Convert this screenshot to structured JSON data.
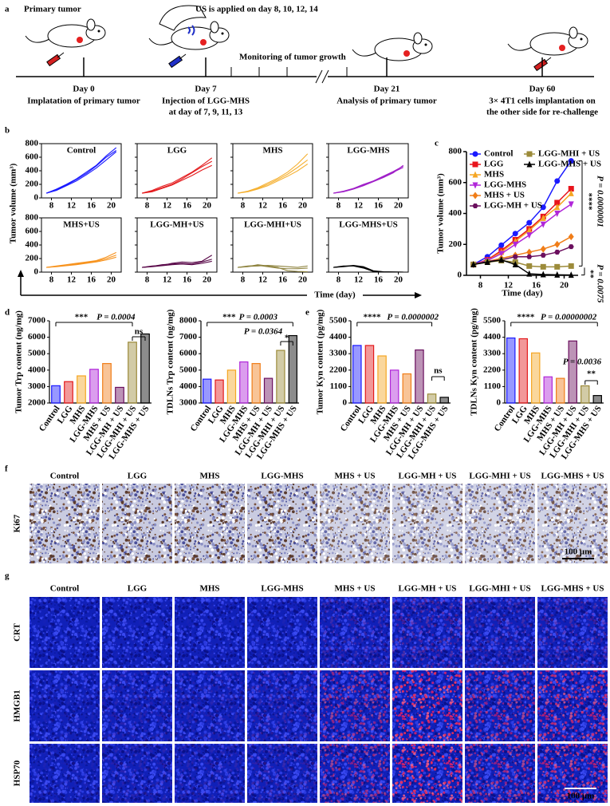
{
  "panel_labels": [
    "a",
    "b",
    "c",
    "d",
    "e",
    "f",
    "g"
  ],
  "timeline": {
    "top_labels": [
      "Primary tumor",
      "US is applied on day 8, 10, 12, 14",
      "Monitoring of tumor growth"
    ],
    "events": [
      {
        "day": "Day 0",
        "desc": [
          "Implatation of primary tumor"
        ]
      },
      {
        "day": "Day 7",
        "desc": [
          "Injection of LGG-MHS",
          "at day of 7, 9, 11, 13"
        ]
      },
      {
        "day": "Day 21",
        "desc": [
          "Analysis of primary tumor"
        ]
      },
      {
        "day": "Day 60",
        "desc": [
          "3× 4T1 cells implantation on",
          "the other side for re-challenge"
        ]
      }
    ]
  },
  "chart_data": [
    {
      "type": "small-multiples",
      "ylabel": "Tumor volume (mm³)",
      "xlabel": "Time (day)",
      "x": [
        7,
        9,
        11,
        13,
        15,
        17,
        19,
        21
      ],
      "xlim": [
        6,
        22
      ],
      "xticks": [
        8,
        12,
        16,
        20
      ],
      "ylim": [
        0,
        800
      ],
      "yticks": [
        0,
        200,
        400,
        600,
        800
      ],
      "panels": [
        {
          "title": "Control",
          "color": "#1a1aff",
          "series": [
            {
              "values": [
                70,
                130,
                200,
                280,
                380,
                480,
                620,
                740
              ]
            },
            {
              "values": [
                70,
                120,
                190,
                270,
                360,
                470,
                600,
                700
              ]
            },
            {
              "values": [
                70,
                110,
                180,
                250,
                340,
                440,
                560,
                680
              ]
            }
          ]
        },
        {
          "title": "LGG",
          "color": "#e31a1c",
          "series": [
            {
              "values": [
                70,
                110,
                170,
                220,
                300,
                380,
                480,
                590
              ]
            },
            {
              "values": [
                70,
                100,
                150,
                200,
                280,
                370,
                460,
                540
              ]
            },
            {
              "values": [
                70,
                90,
                140,
                190,
                260,
                330,
                410,
                480
              ]
            }
          ]
        },
        {
          "title": "MHS",
          "color": "#f5b133",
          "series": [
            {
              "values": [
                70,
                100,
                150,
                220,
                290,
                380,
                500,
                650
              ]
            },
            {
              "values": [
                70,
                95,
                140,
                200,
                270,
                350,
                450,
                560
              ]
            },
            {
              "values": [
                70,
                90,
                130,
                180,
                250,
                320,
                400,
                500
              ]
            }
          ]
        },
        {
          "title": "LGG-MHS",
          "color": "#a020c8",
          "series": [
            {
              "values": [
                70,
                100,
                140,
                190,
                250,
                320,
                390,
                470
              ]
            },
            {
              "values": [
                70,
                95,
                140,
                200,
                250,
                310,
                380,
                450
              ]
            },
            {
              "values": [
                70,
                90,
                130,
                180,
                240,
                300,
                370,
                480
              ]
            }
          ]
        },
        {
          "title": "MHS+US",
          "color": "#f7931e",
          "series": [
            {
              "values": [
                70,
                90,
                110,
                130,
                150,
                170,
                220,
                290
              ]
            },
            {
              "values": [
                70,
                85,
                100,
                120,
                140,
                160,
                200,
                250
              ]
            },
            {
              "values": [
                70,
                80,
                95,
                110,
                130,
                150,
                180,
                220
              ]
            }
          ]
        },
        {
          "title": "LGG-MH+US",
          "color": "#5a0a4a",
          "series": [
            {
              "values": [
                70,
                90,
                100,
                130,
                150,
                140,
                160,
                250
              ]
            },
            {
              "values": [
                70,
                85,
                110,
                120,
                130,
                120,
                150,
                190
              ]
            },
            {
              "values": [
                70,
                80,
                95,
                110,
                120,
                110,
                130,
                160
              ]
            }
          ]
        },
        {
          "title": "LGG-MHI+US",
          "color": "#8f8440",
          "series": [
            {
              "values": [
                70,
                90,
                100,
                80,
                60,
                50,
                50,
                60
              ]
            },
            {
              "values": [
                70,
                85,
                90,
                100,
                90,
                80,
                70,
                90
              ]
            },
            {
              "values": [
                70,
                80,
                110,
                90,
                70,
                20,
                10,
                5
              ]
            }
          ]
        },
        {
          "title": "LGG-MHS+US",
          "color": "#000000",
          "series": [
            {
              "values": [
                70,
                85,
                100,
                80,
                20,
                5,
                2,
                1
              ]
            },
            {
              "values": [
                70,
                90,
                90,
                60,
                10,
                3,
                1,
                0
              ]
            },
            {
              "values": [
                70,
                80,
                95,
                70,
                15,
                4,
                1,
                0
              ]
            }
          ]
        }
      ]
    },
    {
      "type": "line",
      "ylabel": "Tumor volume (mm³)",
      "xlabel": "Time (day)",
      "legend": "upper left",
      "x": [
        7,
        9,
        11,
        13,
        15,
        17,
        19,
        21
      ],
      "xlim": [
        6,
        22
      ],
      "xticks": [
        8,
        12,
        16,
        20
      ],
      "ylim": [
        0,
        800
      ],
      "yticks": [
        0,
        200,
        400,
        600,
        800
      ],
      "annotations": [
        "****",
        "P = 0.0000001",
        "**",
        "P = 0.0075"
      ],
      "series": [
        {
          "name": "Control",
          "color": "#1a1aff",
          "marker": "circle",
          "values": [
            70,
            120,
            195,
            270,
            340,
            440,
            610,
            740
          ]
        },
        {
          "name": "LGG",
          "color": "#e8141c",
          "marker": "square",
          "values": [
            70,
            100,
            160,
            230,
            300,
            380,
            470,
            560
          ]
        },
        {
          "name": "MHS",
          "color": "#f5a623",
          "marker": "triangle",
          "values": [
            70,
            95,
            150,
            220,
            290,
            370,
            440,
            530
          ]
        },
        {
          "name": "LGG-MHS",
          "color": "#b026d9",
          "marker": "triangle-down",
          "values": [
            70,
            95,
            140,
            200,
            260,
            330,
            400,
            460
          ]
        },
        {
          "name": "MHS + US",
          "color": "#f07d18",
          "marker": "diamond",
          "values": [
            70,
            90,
            110,
            130,
            150,
            170,
            200,
            250
          ]
        },
        {
          "name": "LGG-MH + US",
          "color": "#6b0f5e",
          "marker": "hexagon",
          "values": [
            70,
            90,
            100,
            120,
            120,
            130,
            150,
            185
          ]
        },
        {
          "name": "LGG-MHI + US",
          "color": "#9c8b3a",
          "marker": "square",
          "values": [
            70,
            85,
            95,
            85,
            60,
            55,
            55,
            60
          ]
        },
        {
          "name": "LGG-MHS + US",
          "color": "#000000",
          "marker": "triangle",
          "values": [
            70,
            85,
            100,
            70,
            10,
            5,
            3,
            2
          ]
        }
      ]
    },
    {
      "type": "bar",
      "ylabel": "Tumor Trp content (ng/mg)",
      "categories": [
        "Control",
        "LGG",
        "MHS",
        "LGG-MHS",
        "MHS + US",
        "LGG-MH + US",
        "LGG-MHI + US",
        "LGG-MHS + US"
      ],
      "colors": [
        "#1a1aff",
        "#e31a1c",
        "#f5a623",
        "#b026d9",
        "#f07d18",
        "#6b0f5e",
        "#9c8b3a",
        "#000000"
      ],
      "values": [
        3050,
        3300,
        3650,
        4050,
        4400,
        2950,
        5700,
        6200
      ],
      "ylim": [
        2000,
        7000
      ],
      "yticks": [
        2000,
        3000,
        4000,
        5000,
        6000,
        7000
      ],
      "annotations": [
        "***",
        "P = 0.0004",
        "ns"
      ]
    },
    {
      "type": "bar",
      "ylabel": "TDLNs Trp content (ng/mg)",
      "categories": [
        "Control",
        "LGG",
        "MHS",
        "LGG-MHS",
        "MHS + US",
        "LGG-MH + US",
        "LGG-MHI + US",
        "LGG-MHS + US"
      ],
      "colors": [
        "#1a1aff",
        "#e31a1c",
        "#f5a623",
        "#b026d9",
        "#f07d18",
        "#6b0f5e",
        "#9c8b3a",
        "#000000"
      ],
      "values": [
        4450,
        4400,
        5000,
        5500,
        5400,
        4500,
        6200,
        7100
      ],
      "ylim": [
        3000,
        8000
      ],
      "yticks": [
        3000,
        4000,
        5000,
        6000,
        7000,
        8000
      ],
      "annotations": [
        "***",
        "P = 0.0003",
        "P = 0.0364",
        "*"
      ]
    },
    {
      "type": "bar",
      "ylabel": "Tumor Kyn content (pg/mg)",
      "categories": [
        "Control",
        "LGG",
        "MHS",
        "LGG-MHS",
        "MHS + US",
        "LGG-MH + US",
        "LGG-MHI + US",
        "LGG-MHS + US"
      ],
      "colors": [
        "#1a1aff",
        "#e31a1c",
        "#f5a623",
        "#b026d9",
        "#f07d18",
        "#6b0f5e",
        "#9c8b3a",
        "#000000"
      ],
      "values": [
        3850,
        3850,
        3150,
        2200,
        1950,
        3550,
        600,
        380
      ],
      "ylim": [
        0,
        5500
      ],
      "yticks": [
        0,
        1100,
        2200,
        3300,
        4400,
        5500
      ],
      "annotations": [
        "****",
        "P = 0.0000002",
        "ns"
      ]
    },
    {
      "type": "bar",
      "ylabel": "TDLNs Kyn content (pg/mg)",
      "categories": [
        "Control",
        "LGG",
        "MHS",
        "LGG-MHS",
        "MHS + US",
        "LGG-MH + US",
        "LGG-MHI + US",
        "LGG-MHS + US"
      ],
      "colors": [
        "#1a1aff",
        "#e31a1c",
        "#f5a623",
        "#b026d9",
        "#f07d18",
        "#6b0f5e",
        "#9c8b3a",
        "#000000"
      ],
      "values": [
        4350,
        4300,
        3350,
        1750,
        1650,
        4150,
        1150,
        500
      ],
      "ylim": [
        0,
        5500
      ],
      "yticks": [
        0,
        1100,
        2200,
        3300,
        4400,
        5500
      ],
      "annotations": [
        "****",
        "P = 0.00000002",
        "P = 0.0036",
        "**"
      ]
    }
  ],
  "histology": {
    "columns": [
      "Control",
      "LGG",
      "MHS",
      "LGG-MHS",
      "MHS + US",
      "LGG-MH + US",
      "LGG-MHI + US",
      "LGG-MHS + US"
    ],
    "ihc_row": "Ki67",
    "if_rows": [
      "CRT",
      "HMGB1",
      "HSP70"
    ],
    "scale_bar": "100 μm"
  }
}
